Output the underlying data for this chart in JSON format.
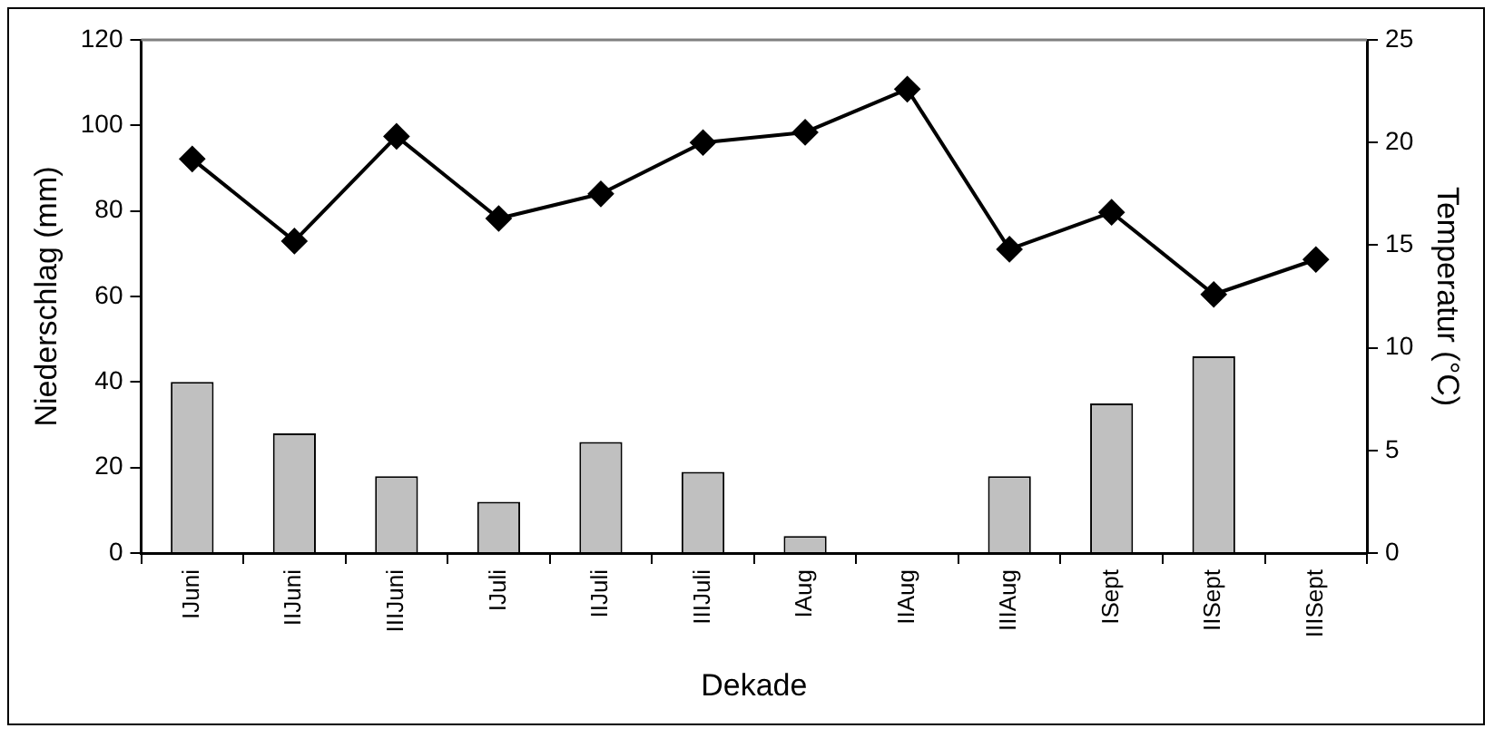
{
  "chart_data": {
    "type": "bar",
    "xlabel": "Dekade",
    "ylabel": "Niederschlag (mm)",
    "y2label": "Temperatur (°C)",
    "categories": [
      "IJuni",
      "IIJuni",
      "IIIJuni",
      "IJuli",
      "IIJuli",
      "IIIJuli",
      "IAug",
      "IIAug",
      "IIIAug",
      "ISept",
      "IISept",
      "IIISept"
    ],
    "series": [
      {
        "color": "#c0c0c0",
        "values": [
          40,
          28,
          18,
          12,
          26,
          19,
          4,
          null,
          18,
          35,
          46,
          0
        ]
      },
      {
        "type": "line",
        "axis": "y2",
        "color": "#000000",
        "marker": "diamond",
        "values": [
          19.2,
          15.2,
          20.3,
          16.3,
          17.5,
          20.0,
          20.5,
          22.6,
          14.8,
          16.6,
          12.6,
          14.3
        ]
      }
    ],
    "ylim": [
      0,
      120
    ],
    "yticks": [
      0,
      20,
      40,
      60,
      80,
      100,
      120
    ],
    "y2lim": [
      0,
      25
    ],
    "y2ticks": [
      0,
      5,
      10,
      15,
      20,
      25
    ],
    "grid": false,
    "legend": false
  }
}
